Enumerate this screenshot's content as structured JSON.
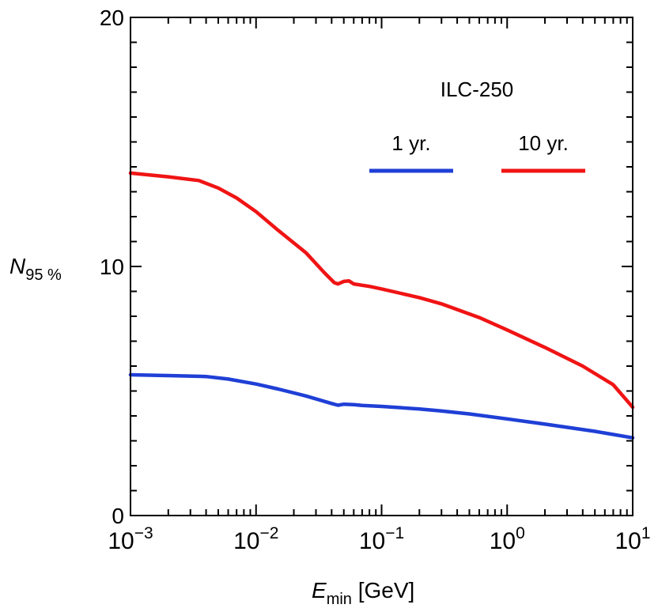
{
  "chart_data": {
    "type": "line",
    "title": "",
    "xscale": "log",
    "xlim": [
      0.001,
      10
    ],
    "ylim": [
      0,
      20
    ],
    "xlabel": {
      "symbol": "E",
      "subscript": "min",
      "unit": "[GeV]"
    },
    "ylabel": {
      "symbol": "N",
      "subscript": "95 %"
    },
    "x_ticks": [
      {
        "value": 0.001,
        "base": "10",
        "exp": "−3"
      },
      {
        "value": 0.01,
        "base": "10",
        "exp": "−2"
      },
      {
        "value": 0.1,
        "base": "10",
        "exp": "−1"
      },
      {
        "value": 1,
        "base": "10",
        "exp": "0"
      },
      {
        "value": 10,
        "base": "10",
        "exp": "1"
      }
    ],
    "y_ticks": [
      {
        "value": 0,
        "label": "0"
      },
      {
        "value": 10,
        "label": "10"
      },
      {
        "value": 20,
        "label": "20"
      }
    ],
    "y_minor_step": 1,
    "legend": {
      "title": "ILC-250",
      "placement": "top-right",
      "entries": [
        {
          "label": "1 yr.",
          "color": "#1f3fd6"
        },
        {
          "label": "10 yr.",
          "color": "#f01414"
        }
      ]
    },
    "series": [
      {
        "name": "1 yr.",
        "color": "#1f3fd6",
        "points": [
          [
            0.001,
            5.65
          ],
          [
            0.002,
            5.62
          ],
          [
            0.004,
            5.58
          ],
          [
            0.006,
            5.48
          ],
          [
            0.01,
            5.28
          ],
          [
            0.015,
            5.08
          ],
          [
            0.025,
            4.8
          ],
          [
            0.04,
            4.5
          ],
          [
            0.045,
            4.43
          ],
          [
            0.05,
            4.47
          ],
          [
            0.06,
            4.45
          ],
          [
            0.07,
            4.42
          ],
          [
            0.1,
            4.38
          ],
          [
            0.2,
            4.28
          ],
          [
            0.3,
            4.2
          ],
          [
            0.5,
            4.08
          ],
          [
            1,
            3.88
          ],
          [
            2,
            3.67
          ],
          [
            5,
            3.38
          ],
          [
            10,
            3.12
          ]
        ]
      },
      {
        "name": "10 yr.",
        "color": "#f01414",
        "points": [
          [
            0.001,
            13.75
          ],
          [
            0.002,
            13.6
          ],
          [
            0.0035,
            13.45
          ],
          [
            0.005,
            13.15
          ],
          [
            0.007,
            12.75
          ],
          [
            0.01,
            12.2
          ],
          [
            0.015,
            11.45
          ],
          [
            0.025,
            10.55
          ],
          [
            0.035,
            9.75
          ],
          [
            0.042,
            9.35
          ],
          [
            0.045,
            9.3
          ],
          [
            0.05,
            9.4
          ],
          [
            0.055,
            9.42
          ],
          [
            0.06,
            9.3
          ],
          [
            0.08,
            9.2
          ],
          [
            0.1,
            9.1
          ],
          [
            0.2,
            8.75
          ],
          [
            0.3,
            8.5
          ],
          [
            0.6,
            7.95
          ],
          [
            1,
            7.45
          ],
          [
            2,
            6.75
          ],
          [
            4,
            6.0
          ],
          [
            7,
            5.25
          ],
          [
            10,
            4.35
          ]
        ]
      }
    ]
  }
}
